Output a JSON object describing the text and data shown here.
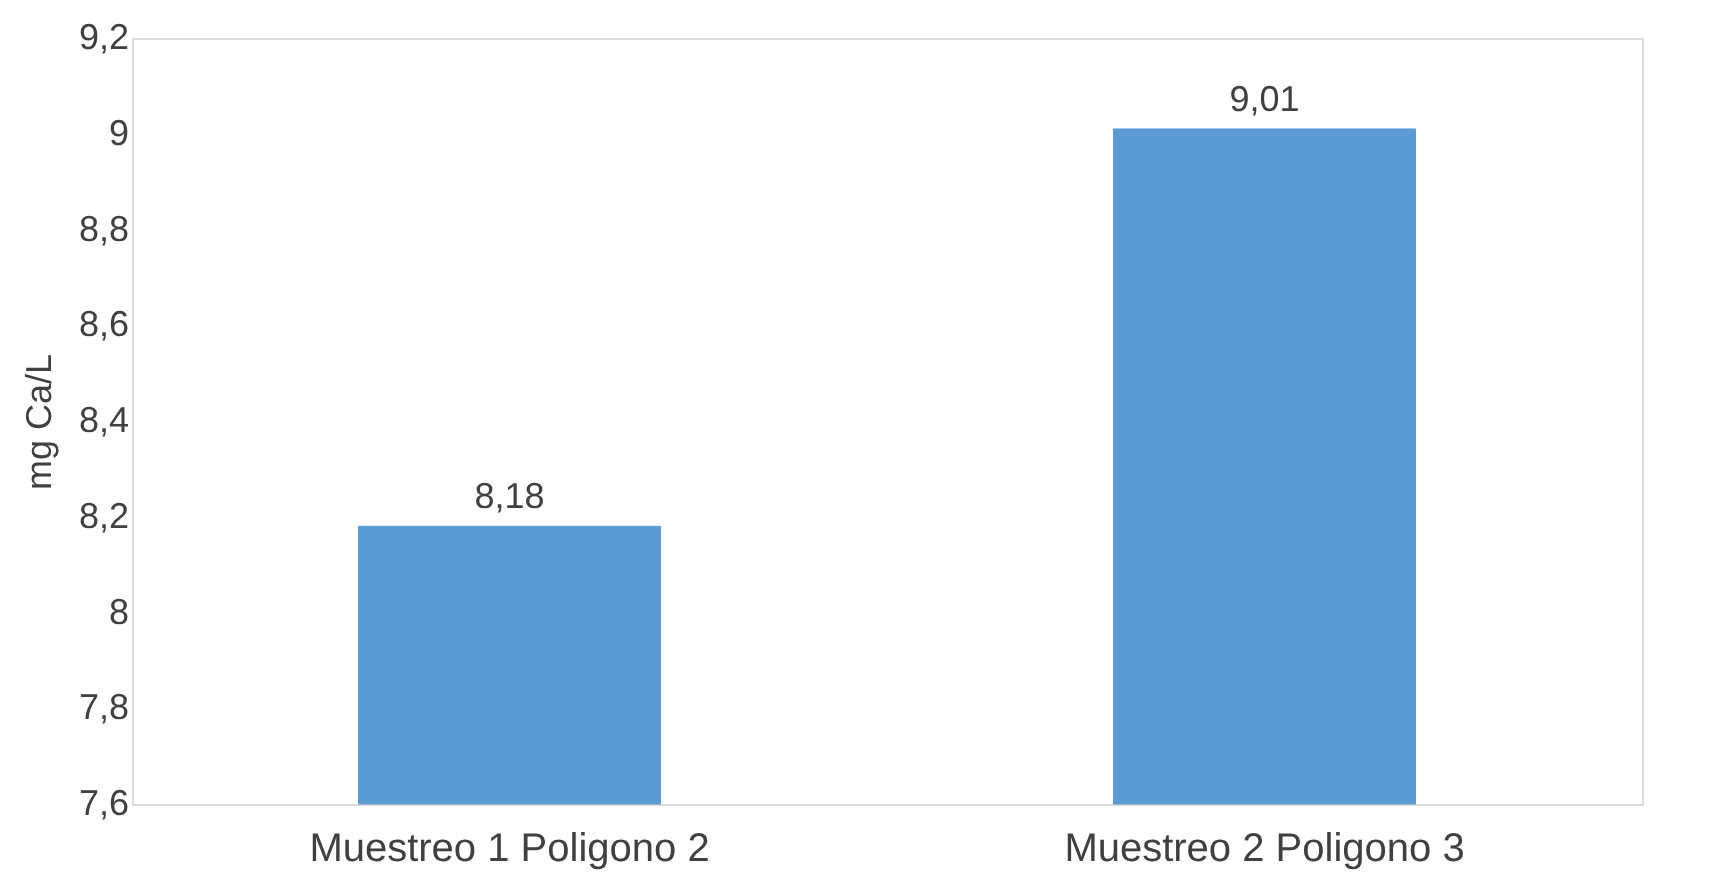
{
  "chart_data": {
    "type": "bar",
    "ylabel": "mg Ca/L",
    "categories": [
      "Muestreo 1 Poligono 2",
      "Muestreo 2 Poligono 3"
    ],
    "values": [
      8.18,
      9.01
    ],
    "value_labels": [
      "8,18",
      "9,01"
    ],
    "color": "#5b9bd5",
    "ylim": [
      7.6,
      9.2
    ],
    "yticks": [
      {
        "value": 7.6,
        "label": "7,6"
      },
      {
        "value": 7.8,
        "label": "7,8"
      },
      8,
      {
        "value": 8.2,
        "label": "8,2"
      },
      {
        "value": 8.4,
        "label": "8,4"
      },
      {
        "value": 8.6,
        "label": "8,6"
      },
      {
        "value": 8.8,
        "label": "8,8"
      },
      9,
      {
        "value": 9.2,
        "label": "9,2"
      }
    ],
    "grid": false
  }
}
